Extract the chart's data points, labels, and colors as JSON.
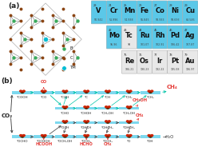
{
  "title_a": "(a)",
  "title_b": "(b)",
  "periodic_table": {
    "row1": [
      {
        "symbol": "V",
        "number": "23",
        "mass": "50.942",
        "color": "#5bc8e8"
      },
      {
        "symbol": "Cr",
        "number": "24",
        "mass": "51.996",
        "color": "#5bc8e8"
      },
      {
        "symbol": "Mn",
        "number": "25",
        "mass": "54.938",
        "color": "#5bc8e8"
      },
      {
        "symbol": "Fe",
        "number": "26",
        "mass": "55.845",
        "color": "#5bc8e8"
      },
      {
        "symbol": "Co",
        "number": "27",
        "mass": "58.933",
        "color": "#5bc8e8"
      },
      {
        "symbol": "Ni",
        "number": "28",
        "mass": "58.693",
        "color": "#5bc8e8"
      },
      {
        "symbol": "Cu",
        "number": "29",
        "mass": "63.546",
        "color": "#5bc8e8"
      }
    ],
    "row2": [
      {
        "symbol": "Mo",
        "number": "42",
        "mass": "95.96",
        "color": "#5bc8e8"
      },
      {
        "symbol": "Tc",
        "number": "43",
        "mass": "98",
        "color": "#e8e8e8"
      },
      {
        "symbol": "Ru",
        "number": "44",
        "mass": "101.07",
        "color": "#5bc8e8"
      },
      {
        "symbol": "Rh",
        "number": "45",
        "mass": "102.91",
        "color": "#5bc8e8"
      },
      {
        "symbol": "Pd",
        "number": "46",
        "mass": "106.42",
        "color": "#5bc8e8"
      },
      {
        "symbol": "Ag",
        "number": "47",
        "mass": "107.87",
        "color": "#5bc8e8"
      }
    ],
    "row3": [
      {
        "symbol": "Re",
        "number": "75",
        "mass": "186.21",
        "color": "#e8e8e8"
      },
      {
        "symbol": "Os",
        "number": "76",
        "mass": "190.23",
        "color": "#e8e8e8"
      },
      {
        "symbol": "Ir",
        "number": "77",
        "mass": "192.22",
        "color": "#e8e8e8"
      },
      {
        "symbol": "Pt",
        "number": "78",
        "mass": "195.08",
        "color": "#e8e8e8"
      },
      {
        "symbol": "Au",
        "number": "79",
        "mass": "196.97",
        "color": "#e8e8e8"
      }
    ]
  },
  "B_color": "#3aaa5c",
  "C_color": "#8B4513",
  "TM_color": "#00bcd4",
  "arrow_teal": "#00c4a7",
  "arrow_black": "#444444",
  "arrow_red": "#e53935",
  "platform_color": "#7dd8ee",
  "bg_color": "#ffffff",
  "top_row_labels": [
    "*COOH",
    "*CO",
    "*COH",
    "*C",
    "*CH",
    "*CH2",
    "*CH3",
    "CH4"
  ],
  "mid_row_labels": [
    "*CHO",
    "*CHOH",
    "*CH2OH",
    "*CH2OH"
  ],
  "mid2_row_labels": [
    "*OCH",
    "*OHCH",
    "*OHCH2",
    "*OHCH3"
  ],
  "bot_row_labels": [
    "*OCHO",
    "*OCHOH",
    "*OCH2OH",
    "*OCH3",
    "*OCH3",
    "*O",
    "*OH"
  ]
}
